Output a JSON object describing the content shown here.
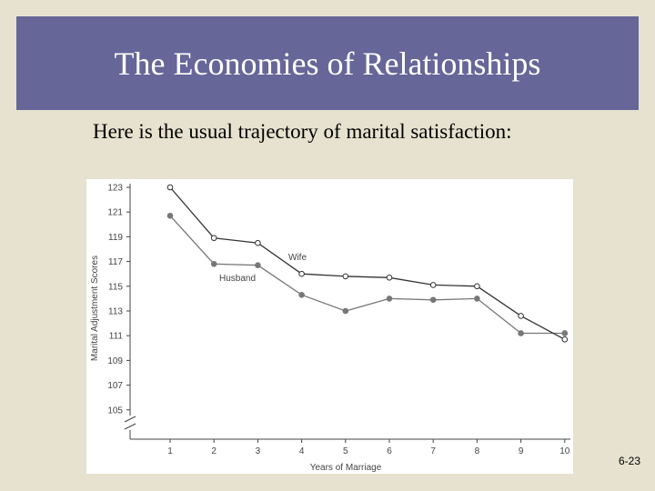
{
  "slide": {
    "title": "The Economies of Relationships",
    "subtitle": "Here is the usual trajectory of marital satisfaction:",
    "slide_number": "6-23"
  },
  "chart_data": {
    "type": "line",
    "xlabel": "Years of Marriage",
    "ylabel": "Marital Adjustment Scores",
    "x": [
      1,
      2,
      3,
      4,
      5,
      6,
      7,
      8,
      9,
      10
    ],
    "x_ticks": [
      "1",
      "2",
      "3",
      "4",
      "5",
      "6",
      "7",
      "8",
      "9",
      "10"
    ],
    "y_ticks": [
      "123",
      "121",
      "119",
      "117",
      "115",
      "113",
      "111",
      "109",
      "107",
      "105"
    ],
    "ylim": [
      105,
      123
    ],
    "axis_break": true,
    "grid": false,
    "series": [
      {
        "name": "Wife",
        "marker": "open-circle",
        "color": "#333333",
        "values": [
          123.0,
          118.9,
          118.5,
          116.0,
          115.8,
          115.7,
          115.1,
          115.0,
          112.6,
          110.7
        ]
      },
      {
        "name": "Husband",
        "marker": "filled-circle",
        "color": "#777777",
        "values": [
          120.7,
          116.8,
          116.7,
          114.3,
          113.0,
          114.0,
          113.9,
          114.0,
          111.2,
          111.2
        ]
      }
    ]
  }
}
